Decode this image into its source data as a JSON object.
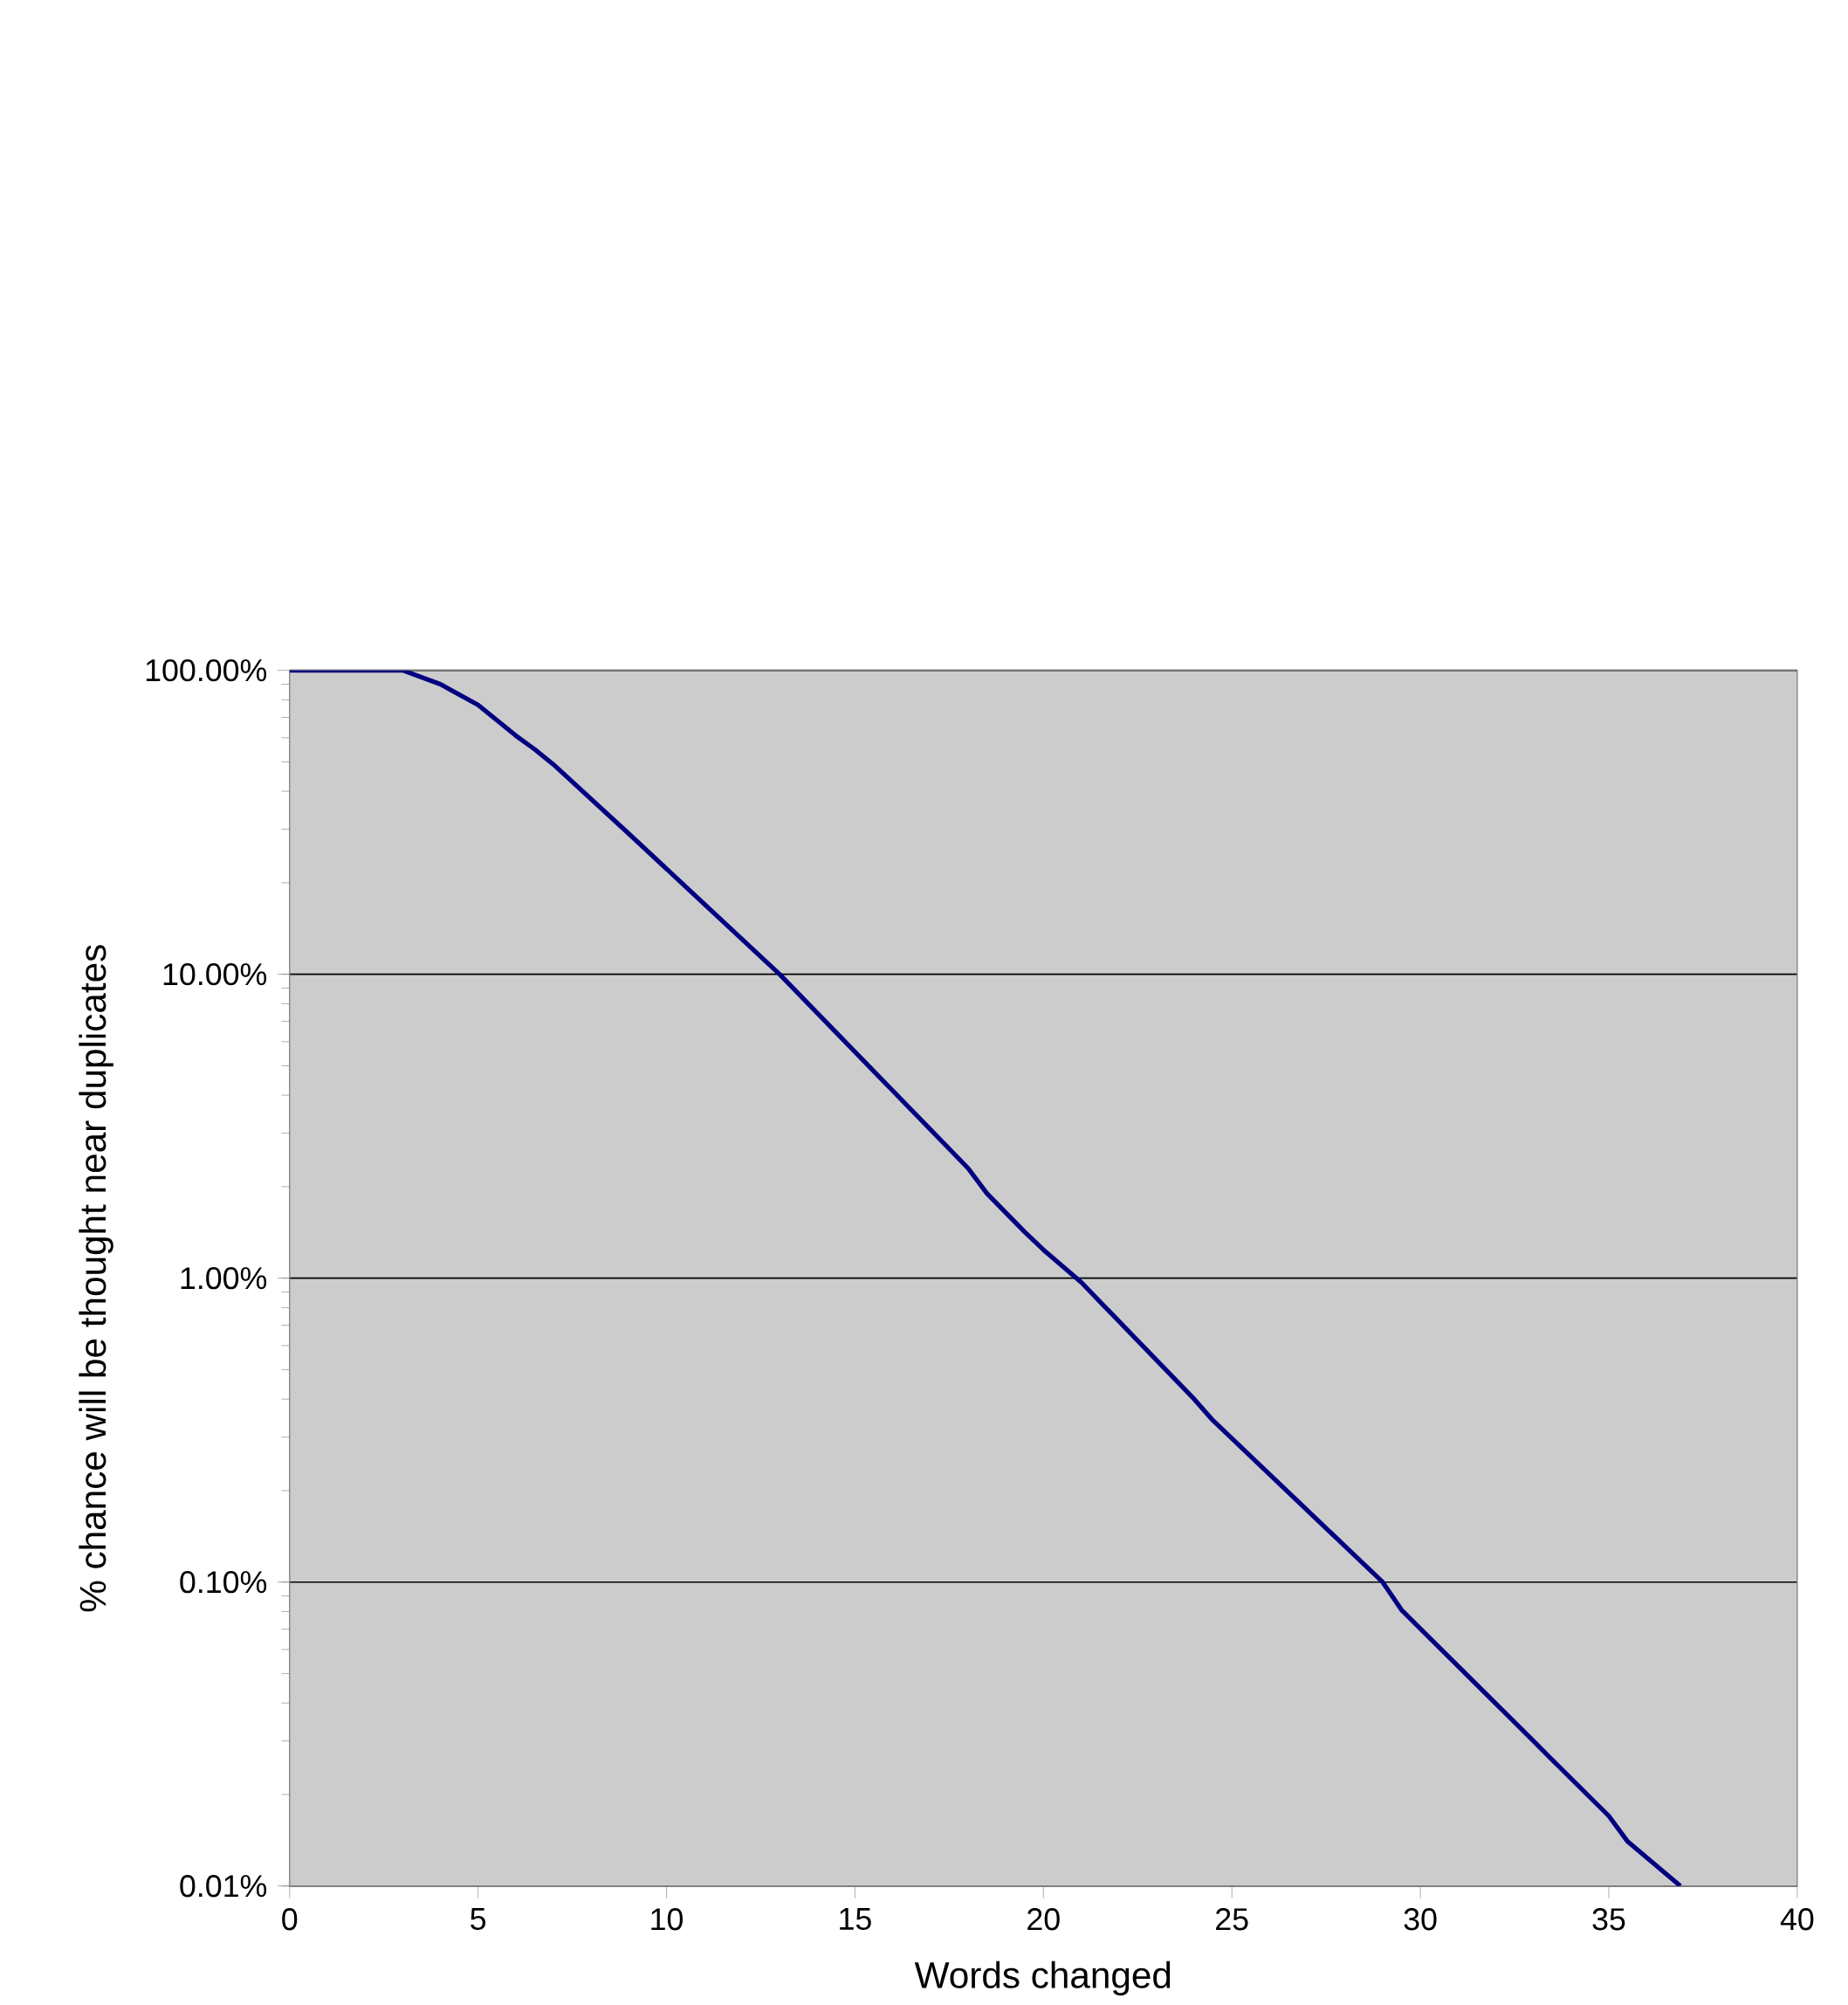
{
  "chart_data": {
    "type": "line",
    "xlabel": "Words changed",
    "ylabel": "% chance will be thought near duplicates",
    "x": [
      0,
      3,
      4,
      5,
      6,
      6.5,
      7,
      9,
      13,
      18,
      18.5,
      19.5,
      20,
      21,
      24,
      24.5,
      29,
      29.5,
      33,
      33.5,
      35,
      35.5,
      36.9
    ],
    "series": [
      {
        "color": "#000080",
        "values": [
          100,
          100,
          90,
          77,
          61,
          55,
          49,
          29,
          10,
          2.3,
          1.9,
          1.42,
          1.24,
          0.97,
          0.4,
          0.34,
          0.1,
          0.081,
          0.03,
          0.026,
          0.017,
          0.014,
          0.01
        ]
      }
    ],
    "xlim": [
      0,
      40
    ],
    "xticks": [
      0,
      5,
      10,
      15,
      20,
      25,
      30,
      35,
      40
    ],
    "ylim": [
      0.01,
      100
    ],
    "yticks": [
      {
        "value": 0.01,
        "label": "0.01%"
      },
      {
        "value": 0.1,
        "label": "0.10%"
      },
      {
        "value": 1,
        "label": "1.00%"
      },
      {
        "value": 10,
        "label": "10.00%"
      },
      {
        "value": 100,
        "label": "100.00%"
      }
    ],
    "log": "y",
    "grid": "y",
    "marker": "none",
    "line_style": "solid"
  }
}
